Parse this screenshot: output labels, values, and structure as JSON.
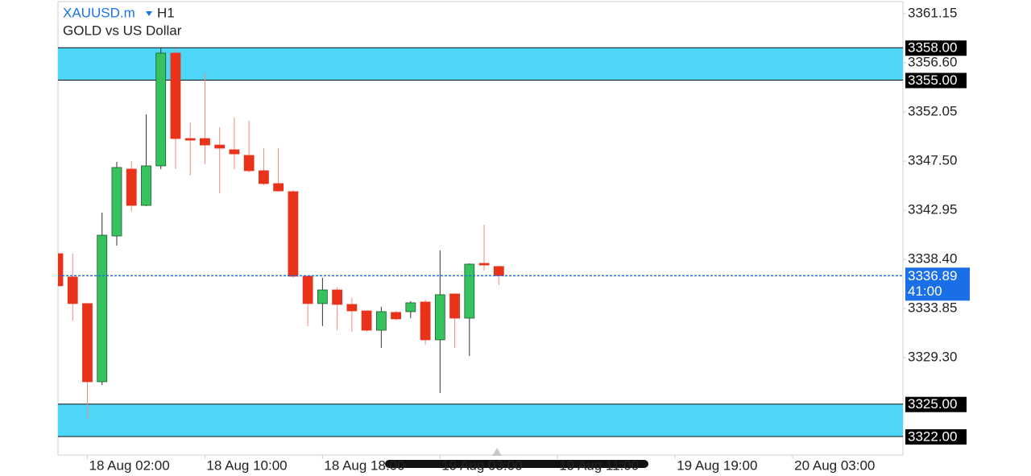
{
  "chart_data": {
    "type": "candlestick",
    "symbol": "XAUUSD.m",
    "timeframe": "H1",
    "subtitle": "GOLD vs US Dollar",
    "categories": [
      null,
      null,
      "18 Aug 02:00",
      null,
      null,
      null,
      null,
      null,
      null,
      null,
      "18 Aug 10:00",
      null,
      null,
      null,
      null,
      null,
      null,
      null,
      "18 Aug 18:00",
      null,
      null,
      null,
      null,
      null,
      null,
      null,
      "19 Aug 03:00",
      null,
      null,
      null,
      null,
      null,
      null,
      null,
      "19 Aug 11:00",
      null,
      null,
      null,
      null,
      null,
      null,
      null,
      "19 Aug 19:00",
      null,
      null,
      null,
      null,
      null,
      null,
      null,
      "20 Aug 03:00",
      null,
      null,
      null,
      null,
      null,
      null,
      null
    ],
    "open": [
      3338.93,
      3336.77,
      3334.31,
      3327.07,
      3340.57,
      3346.76,
      3343.4,
      3347.06,
      3357.5,
      3349.59,
      3349.59,
      3348.99,
      3348.55,
      3348.03,
      3346.61,
      3345.42,
      3344.67,
      3336.84,
      3334.31,
      3335.57,
      3334.23,
      3333.63,
      3331.84,
      3333.49,
      3333.56,
      3334.45,
      3330.95,
      3335.2,
      3332.96,
      3338.03,
      3337.74,
      null,
      null,
      null,
      null,
      null,
      null,
      null,
      null,
      null,
      null,
      null,
      null,
      null,
      null,
      null,
      null,
      null,
      null,
      null,
      null,
      null,
      null,
      null,
      null,
      null,
      null,
      null
    ],
    "high": [
      3338.93,
      3338.93,
      3334.31,
      3342.73,
      3347.43,
      3347.5,
      3351.83,
      3357.94,
      3357.94,
      3351.08,
      3355.63,
      3350.64,
      3351.53,
      3351.23,
      3348.7,
      3348.7,
      3344.82,
      3336.84,
      3336.69,
      3335.8,
      3334.83,
      3333.63,
      3334.01,
      3333.63,
      3334.53,
      3334.68,
      3339.23,
      3335.2,
      3338.03,
      3341.61,
      3337.81,
      null,
      null,
      null,
      null,
      null,
      null,
      null,
      null,
      null,
      null,
      null,
      null,
      null,
      null,
      null,
      null,
      null,
      null,
      null,
      null,
      null,
      null,
      null,
      null,
      null,
      null,
      null
    ],
    "low": [
      3335.95,
      3332.74,
      3323.64,
      3326.77,
      3339.67,
      3342.88,
      3343.33,
      3346.76,
      3346.76,
      3346.16,
      3347.21,
      3344.52,
      3346.76,
      3346.46,
      3345.27,
      3344.67,
      3336.69,
      3332.22,
      3332.22,
      3331.84,
      3331.7,
      3331.7,
      3330.2,
      3332.74,
      3332.96,
      3330.5,
      3326.03,
      3330.2,
      3329.46,
      3337.36,
      3336.02,
      null,
      null,
      null,
      null,
      null,
      null,
      null,
      null,
      null,
      null,
      null,
      null,
      null,
      null,
      null,
      null,
      null,
      null,
      null,
      null,
      null,
      null,
      null,
      null,
      null,
      null,
      null
    ],
    "close": [
      3335.95,
      3334.31,
      3327.07,
      3340.64,
      3346.91,
      3343.4,
      3347.06,
      3357.5,
      3349.59,
      3349.44,
      3348.99,
      3348.7,
      3348.17,
      3346.61,
      3345.42,
      3344.74,
      3336.84,
      3334.31,
      3335.57,
      3334.23,
      3333.63,
      3331.84,
      3333.56,
      3332.89,
      3334.38,
      3330.95,
      3335.13,
      3332.96,
      3337.96,
      3337.88,
      3336.89,
      null,
      null,
      null,
      null,
      null,
      null,
      null,
      null,
      null,
      null,
      null,
      null,
      null,
      null,
      null,
      null,
      null,
      null,
      null,
      null,
      null,
      null,
      null,
      null,
      null,
      null,
      null
    ],
    "up_color": "#36c25e",
    "down_color": "#e8321a",
    "ylim": [
      3320.28,
      3362.27
    ],
    "yticks": [
      3361.15,
      {
        "value": 3356.6,
        "label": "3356.60"
      },
      3352.05,
      {
        "value": 3347.5,
        "label": "3347.50"
      },
      3342.95,
      {
        "value": 3338.4,
        "label": "3338.40"
      },
      3333.85,
      {
        "value": 3329.3,
        "label": "3329.30"
      }
    ],
    "zones": [
      {
        "from": {
          "value": 3355,
          "label": "3355.00"
        },
        "to": {
          "value": 3358,
          "label": "3358.00"
        }
      },
      {
        "from": {
          "value": 3322,
          "label": "3322.00"
        },
        "to": {
          "value": 3325,
          "label": "3325.00"
        }
      }
    ],
    "zone_color": "#4dd6f7",
    "current_price": 3336.89,
    "countdown": "41:00",
    "price_line_color": "#1a6fe8"
  }
}
